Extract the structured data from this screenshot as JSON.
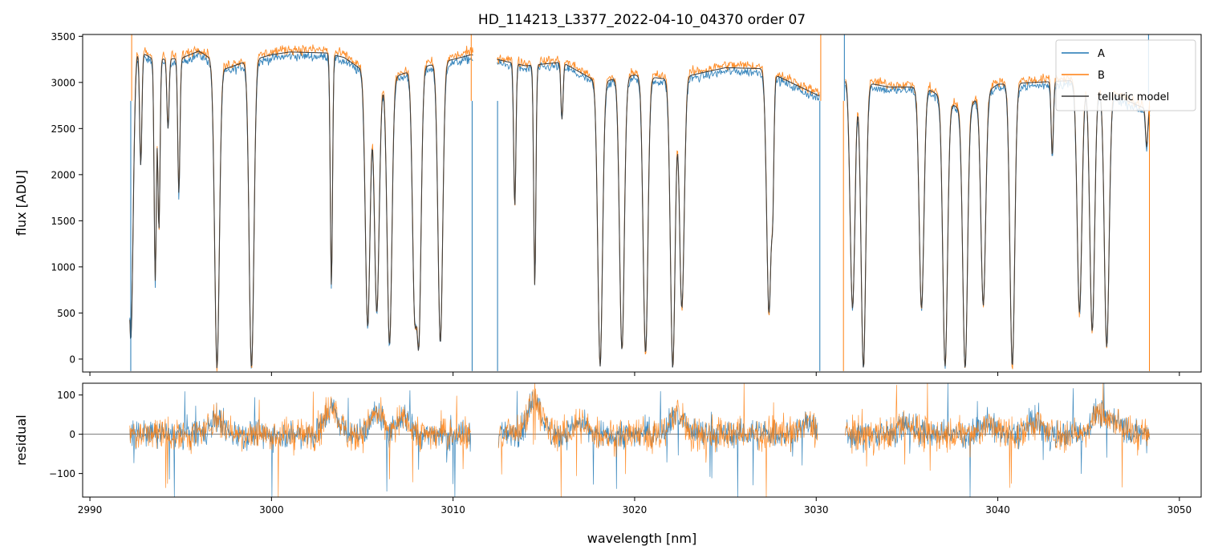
{
  "chart_data": [
    {
      "type": "line",
      "panel": "top",
      "title": "HD_114213_L3377_2022-04-10_04370  order 07",
      "xlabel": "",
      "ylabel": "flux [ADU]",
      "xlim": [
        2989.6,
        3051.2
      ],
      "ylim": [
        -140,
        3520
      ],
      "xticks": [
        2990,
        3000,
        3010,
        3020,
        3030,
        3040,
        3050
      ],
      "yticks": [
        0,
        500,
        1000,
        1500,
        2000,
        2500,
        3000,
        3500
      ],
      "ytick_labels": [
        "0",
        "500",
        "1000",
        "1500",
        "2000",
        "2500",
        "3000",
        "3500"
      ],
      "legend_position": "top-right",
      "data_gaps": [
        [
          3011.1,
          3012.4
        ],
        [
          3030.2,
          3031.6
        ]
      ],
      "continuum": [
        [
          2992.2,
          3400
        ],
        [
          2993.5,
          3250
        ],
        [
          2995,
          3260
        ],
        [
          2996,
          3340
        ],
        [
          2997.5,
          3150
        ],
        [
          2998.5,
          3220
        ],
        [
          3000,
          3300
        ],
        [
          3001,
          3330
        ],
        [
          3003,
          3320
        ],
        [
          3004,
          3270
        ],
        [
          3006,
          3000
        ],
        [
          3008,
          3150
        ],
        [
          3010,
          3250
        ],
        [
          3011,
          3300
        ],
        [
          3012.4,
          3250
        ],
        [
          3014,
          3180
        ],
        [
          3016,
          3220
        ],
        [
          3018,
          3000
        ],
        [
          3020,
          3080
        ],
        [
          3022,
          3030
        ],
        [
          3025,
          3160
        ],
        [
          3027,
          3150
        ],
        [
          3030.2,
          2850
        ],
        [
          3031.6,
          3040
        ],
        [
          3034,
          2950
        ],
        [
          3036,
          2950
        ],
        [
          3038,
          2700
        ],
        [
          3040,
          2980
        ],
        [
          3042,
          3000
        ],
        [
          3044,
          3020
        ],
        [
          3046,
          2900
        ],
        [
          3048.3,
          2700
        ]
      ],
      "absorption_lines": [
        [
          2992.25,
          200
        ],
        [
          2992.8,
          2100
        ],
        [
          2993.6,
          850
        ],
        [
          2993.8,
          1400
        ],
        [
          2994.3,
          2500
        ],
        [
          2994.9,
          1800
        ],
        [
          2997,
          -100
        ],
        [
          2998.9,
          -100
        ],
        [
          3003.3,
          800
        ],
        [
          3005.3,
          350
        ],
        [
          3005.8,
          500
        ],
        [
          3006.5,
          150
        ],
        [
          3007.9,
          500
        ],
        [
          3008.1,
          120
        ],
        [
          3009.3,
          170
        ],
        [
          3013.4,
          1650
        ],
        [
          3014.5,
          800
        ],
        [
          3016,
          2600
        ],
        [
          3018.1,
          -80
        ],
        [
          3019.3,
          100
        ],
        [
          3020.6,
          60
        ],
        [
          3022.1,
          -100
        ],
        [
          3022.6,
          550
        ],
        [
          3027.4,
          500
        ],
        [
          3027.6,
          1900
        ],
        [
          3032,
          550
        ],
        [
          3032.6,
          -100
        ],
        [
          3035.8,
          550
        ],
        [
          3037.1,
          -80
        ],
        [
          3038.2,
          -100
        ],
        [
          3039.2,
          580
        ],
        [
          3040.8,
          -80
        ],
        [
          3043,
          2200
        ],
        [
          3044.5,
          500
        ],
        [
          3045.2,
          300
        ],
        [
          3046,
          130
        ],
        [
          3048.2,
          2300
        ]
      ],
      "series": [
        {
          "name": "A",
          "color": "#1f77b4",
          "offset": -40,
          "noise": 25
        },
        {
          "name": "B",
          "color": "#ff7f0e",
          "offset": 30,
          "noise": 28
        },
        {
          "name": "telluric model",
          "color": "#3a3a3a",
          "offset": 0,
          "noise": 0
        }
      ],
      "spikes": [
        {
          "series": "A",
          "x": 2992.25,
          "y": -130
        },
        {
          "series": "A",
          "x": 3011.05,
          "y": -130
        },
        {
          "series": "A",
          "x": 3012.45,
          "y": -130
        },
        {
          "series": "A",
          "x": 3030.2,
          "y": -130
        },
        {
          "series": "A",
          "x": 3031.55,
          "y": 3520
        },
        {
          "series": "A",
          "x": 3048.3,
          "y": 3520
        },
        {
          "series": "B",
          "x": 2992.3,
          "y": 3520
        },
        {
          "series": "B",
          "x": 3011.0,
          "y": 3520
        },
        {
          "series": "B",
          "x": 3030.25,
          "y": 3520
        },
        {
          "series": "B",
          "x": 3031.5,
          "y": -130
        },
        {
          "series": "B",
          "x": 3048.35,
          "y": -130
        }
      ]
    },
    {
      "type": "line",
      "panel": "bottom",
      "title": "",
      "xlabel": "wavelength [nm]",
      "ylabel": "residual",
      "xlim": [
        2989.6,
        3051.2
      ],
      "ylim": [
        -160,
        130
      ],
      "xticks": [
        2990,
        3000,
        3010,
        3020,
        3030,
        3040,
        3050
      ],
      "xtick_labels": [
        "2990",
        "3000",
        "3010",
        "3020",
        "3030",
        "3040",
        "3050"
      ],
      "yticks": [
        -100,
        0,
        100
      ],
      "ytick_labels": [
        "−100",
        "0",
        "100"
      ],
      "zero_line": 0,
      "segments": [
        [
          2992.2,
          3011.0
        ],
        [
          3012.5,
          3030.1
        ],
        [
          3031.6,
          3048.4
        ]
      ],
      "series": [
        {
          "name": "A",
          "color": "#1f77b4",
          "noise": 18
        },
        {
          "name": "B",
          "color": "#ff7f0e",
          "noise": 22
        }
      ]
    }
  ],
  "legend": {
    "items": [
      {
        "label": "A",
        "color": "#1f77b4"
      },
      {
        "label": "B",
        "color": "#ff7f0e"
      },
      {
        "label": "telluric model",
        "color": "#3a3a3a"
      }
    ]
  }
}
